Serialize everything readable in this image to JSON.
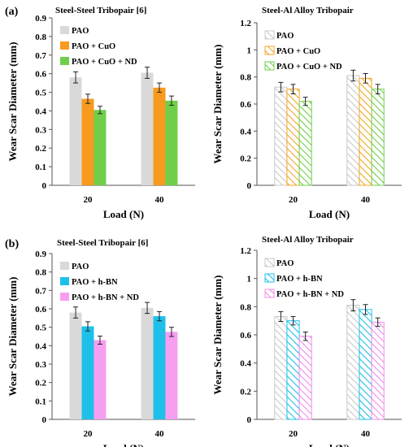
{
  "panels": [
    {
      "label": "(a)"
    },
    {
      "label": "(b)"
    }
  ],
  "chart_data": [
    {
      "type": "bar",
      "title": "Steel-Steel Tribopair [6]",
      "xlabel": "Load (N)",
      "ylabel": "Wear Scar Diameter (mm)",
      "categories": [
        "20",
        "40"
      ],
      "ylim": [
        0,
        0.9
      ],
      "yticks": [
        "0",
        "0.1",
        "0.2",
        "0.3",
        "0.4",
        "0.5",
        "0.6",
        "0.7",
        "0.8",
        "0.9"
      ],
      "legend_position": "top-left",
      "bar_style": "solid",
      "series": [
        {
          "name": "PAO",
          "values": [
            0.58,
            0.605
          ],
          "errors": [
            0.03,
            0.03
          ],
          "color": "#d9d9d9"
        },
        {
          "name": "PAO + CuO",
          "values": [
            0.465,
            0.525
          ],
          "errors": [
            0.025,
            0.025
          ],
          "color": "#f79a1e"
        },
        {
          "name": "PAO + CuO + ND",
          "values": [
            0.405,
            0.455
          ],
          "errors": [
            0.02,
            0.025
          ],
          "color": "#6fcf4a"
        }
      ]
    },
    {
      "type": "bar",
      "title": "Steel-Al Alloy Tribopair",
      "xlabel": "Load (N)",
      "ylabel": "Wear Scar Diameter (mm)",
      "categories": [
        "20",
        "40"
      ],
      "ylim": [
        0,
        1.2
      ],
      "yticks": [
        "0",
        "0.2",
        "0.4",
        "0.6",
        "0.8",
        "1",
        "1.2"
      ],
      "legend_position": "top-left",
      "bar_style": "hatched",
      "series": [
        {
          "name": "PAO",
          "values": [
            0.725,
            0.81
          ],
          "errors": [
            0.035,
            0.04
          ],
          "color": "#c8c8c8"
        },
        {
          "name": "PAO + CuO",
          "values": [
            0.71,
            0.79
          ],
          "errors": [
            0.035,
            0.035
          ],
          "color": "#f5a623"
        },
        {
          "name": "PAO + CuO + ND",
          "values": [
            0.62,
            0.71
          ],
          "errors": [
            0.03,
            0.035
          ],
          "color": "#6fcf4a"
        }
      ]
    },
    {
      "type": "bar",
      "title": "Steel-Steel Tribopair [6]",
      "xlabel": "Load (N)",
      "ylabel": "Wear Scar Diameter (mm)",
      "categories": [
        "20",
        "40"
      ],
      "ylim": [
        0,
        0.9
      ],
      "yticks": [
        "0",
        "0.1",
        "0.2",
        "0.3",
        "0.4",
        "0.5",
        "0.6",
        "0.7",
        "0.8",
        "0.9"
      ],
      "legend_position": "top-left",
      "bar_style": "solid",
      "series": [
        {
          "name": "PAO",
          "values": [
            0.58,
            0.605
          ],
          "errors": [
            0.03,
            0.03
          ],
          "color": "#d9d9d9"
        },
        {
          "name": "PAO + h-BN",
          "values": [
            0.505,
            0.56
          ],
          "errors": [
            0.025,
            0.025
          ],
          "color": "#1ec0ea"
        },
        {
          "name": "PAO + h-BN + ND",
          "values": [
            0.43,
            0.475
          ],
          "errors": [
            0.022,
            0.025
          ],
          "color": "#f79ef0"
        }
      ]
    },
    {
      "type": "bar",
      "title": "Steel-Al Alloy Tribopair",
      "xlabel": "Load (N)",
      "ylabel": "Wear Scar Diameter (mm)",
      "categories": [
        "20",
        "40"
      ],
      "ylim": [
        0,
        1.2
      ],
      "yticks": [
        "0",
        "0.2",
        "0.4",
        "0.6",
        "0.8",
        "1",
        "1.2"
      ],
      "legend_position": "top-left",
      "bar_style": "hatched",
      "series": [
        {
          "name": "PAO",
          "values": [
            0.73,
            0.81
          ],
          "errors": [
            0.035,
            0.04
          ],
          "color": "#c8c8c8"
        },
        {
          "name": "PAO + h-BN",
          "values": [
            0.7,
            0.78
          ],
          "errors": [
            0.03,
            0.035
          ],
          "color": "#1ec0ea"
        },
        {
          "name": "PAO + h-BN + ND",
          "values": [
            0.59,
            0.69
          ],
          "errors": [
            0.03,
            0.03
          ],
          "color": "#f08ce8"
        }
      ]
    }
  ]
}
